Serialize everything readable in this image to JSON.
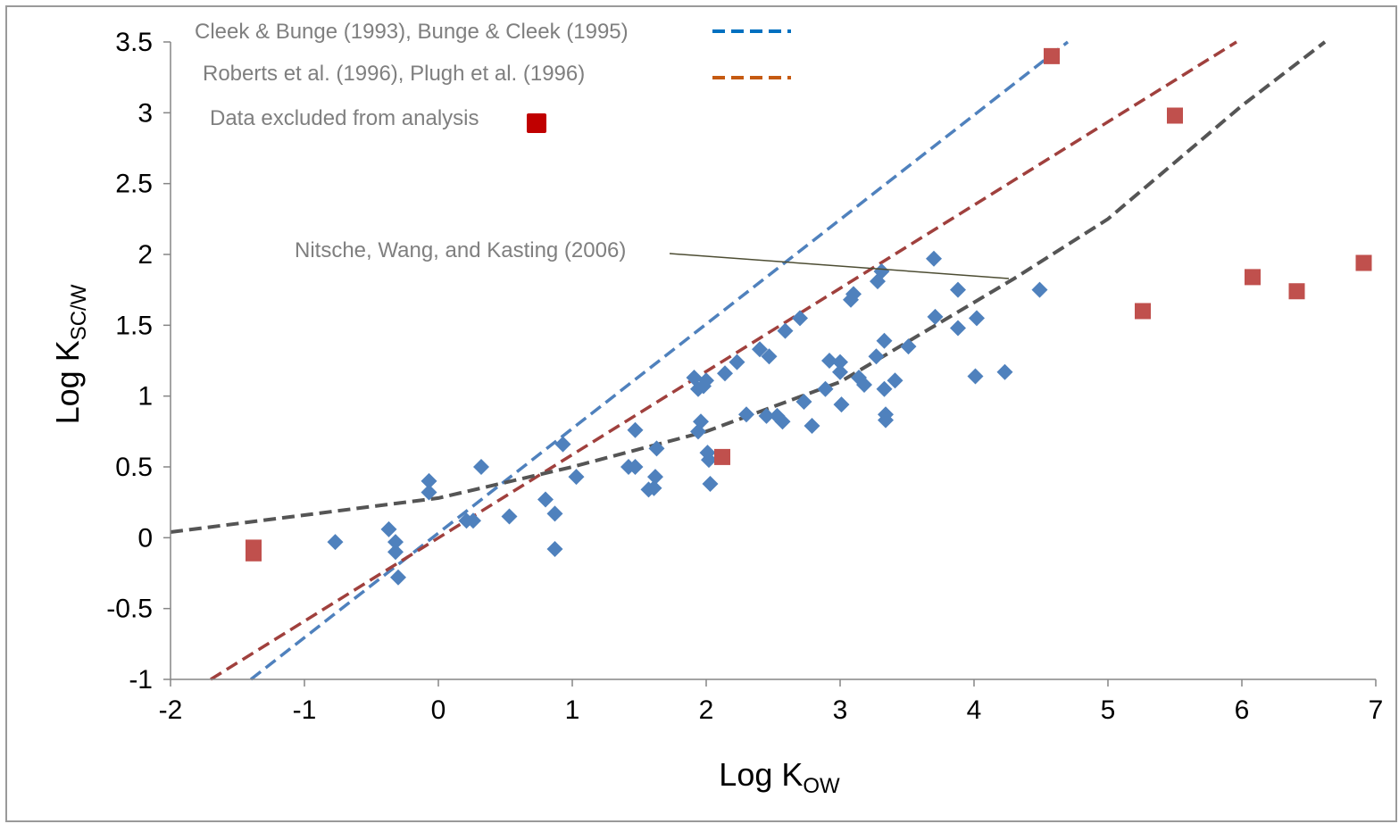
{
  "chart_data": {
    "type": "scatter",
    "xlabel": {
      "main": "Log K",
      "sub": "OW"
    },
    "ylabel": {
      "main": "Log K",
      "sub": "SC/W"
    },
    "xlim": [
      -2,
      7
    ],
    "ylim": [
      -1,
      3.5
    ],
    "xticks": [
      "-2",
      "-1",
      "0",
      "1",
      "2",
      "3",
      "4",
      "5",
      "6",
      "7"
    ],
    "yticks": [
      "-1",
      "-0.5",
      "0",
      "0.5",
      "1",
      "1.5",
      "2",
      "2.5",
      "3",
      "3.5"
    ],
    "xtick_values": [
      -2,
      -1,
      0,
      1,
      2,
      3,
      4,
      5,
      6,
      7
    ],
    "ytick_values": [
      -1,
      -0.5,
      0,
      0.5,
      1,
      1.5,
      2,
      2.5,
      3,
      3.5
    ],
    "grid": false,
    "legend": {
      "placement": "top-left",
      "entries": [
        {
          "label": "Cleek & Bunge (1993), Bunge & Cleek (1995)",
          "marker": "dashed-line",
          "color": "#0070c0"
        },
        {
          "label": "Roberts et al. (1996), Plugh et al. (1996)",
          "marker": "dashed-line",
          "color": "#c55a11"
        },
        {
          "label": "Data excluded from analysis",
          "marker": "square",
          "color": "#c00000"
        }
      ]
    },
    "annotations": [
      {
        "text": "Nitsche, Wang, and Kasting (2006)",
        "points_to": {
          "x": 4.3,
          "y": 1.83
        }
      }
    ],
    "series": [
      {
        "marker": "diamond",
        "color": "#4f81bd",
        "points": [
          [
            -0.77,
            -0.03
          ],
          [
            -0.37,
            0.06
          ],
          [
            -0.32,
            -0.03
          ],
          [
            -0.32,
            -0.1
          ],
          [
            -0.3,
            -0.28
          ],
          [
            -0.07,
            0.4
          ],
          [
            -0.07,
            0.32
          ],
          [
            0.21,
            0.12
          ],
          [
            0.26,
            0.12
          ],
          [
            0.32,
            0.5
          ],
          [
            0.53,
            0.15
          ],
          [
            0.8,
            0.27
          ],
          [
            0.87,
            0.17
          ],
          [
            0.87,
            -0.08
          ],
          [
            0.93,
            0.66
          ],
          [
            1.03,
            0.43
          ],
          [
            1.42,
            0.5
          ],
          [
            1.47,
            0.5
          ],
          [
            1.47,
            0.76
          ],
          [
            1.57,
            0.34
          ],
          [
            1.61,
            0.35
          ],
          [
            1.62,
            0.43
          ],
          [
            1.63,
            0.63
          ],
          [
            1.91,
            1.13
          ],
          [
            1.94,
            1.05
          ],
          [
            1.94,
            0.75
          ],
          [
            1.96,
            0.82
          ],
          [
            1.98,
            1.07
          ],
          [
            2.0,
            1.11
          ],
          [
            2.01,
            0.6
          ],
          [
            2.02,
            0.55
          ],
          [
            2.03,
            0.38
          ],
          [
            2.14,
            1.16
          ],
          [
            2.23,
            1.24
          ],
          [
            2.3,
            0.87
          ],
          [
            2.4,
            1.33
          ],
          [
            2.45,
            0.86
          ],
          [
            2.47,
            1.28
          ],
          [
            2.53,
            0.86
          ],
          [
            2.57,
            0.82
          ],
          [
            2.59,
            1.46
          ],
          [
            2.7,
            1.55
          ],
          [
            2.73,
            0.96
          ],
          [
            2.79,
            0.79
          ],
          [
            2.89,
            1.05
          ],
          [
            2.92,
            1.25
          ],
          [
            3.0,
            1.24
          ],
          [
            3.0,
            1.17
          ],
          [
            3.01,
            0.94
          ],
          [
            3.08,
            1.68
          ],
          [
            3.1,
            1.72
          ],
          [
            3.14,
            1.13
          ],
          [
            3.18,
            1.08
          ],
          [
            3.27,
            1.28
          ],
          [
            3.28,
            1.81
          ],
          [
            3.31,
            1.88
          ],
          [
            3.33,
            1.39
          ],
          [
            3.33,
            1.05
          ],
          [
            3.34,
            0.87
          ],
          [
            3.34,
            0.83
          ],
          [
            3.41,
            1.11
          ],
          [
            3.51,
            1.35
          ],
          [
            3.7,
            1.97
          ],
          [
            3.71,
            1.56
          ],
          [
            3.88,
            1.75
          ],
          [
            3.88,
            1.48
          ],
          [
            4.01,
            1.14
          ],
          [
            4.02,
            1.55
          ],
          [
            4.23,
            1.17
          ],
          [
            4.49,
            1.75
          ]
        ]
      },
      {
        "name": "Data excluded from analysis",
        "marker": "square",
        "color": "#c0504d",
        "points": [
          [
            -1.38,
            -0.07
          ],
          [
            -1.38,
            -0.11
          ],
          [
            2.12,
            0.57
          ],
          [
            4.58,
            3.4
          ],
          [
            5.26,
            1.6
          ],
          [
            5.5,
            2.98
          ],
          [
            6.08,
            1.84
          ],
          [
            6.41,
            1.74
          ],
          [
            6.91,
            1.94
          ]
        ]
      }
    ],
    "lines": [
      {
        "color": "#4f81bd",
        "style": "dashed",
        "points": [
          [
            -1.4,
            -1.0
          ],
          [
            4.7,
            3.5
          ]
        ]
      },
      {
        "color": "#a0403d",
        "style": "dashed",
        "points": [
          [
            -1.7,
            -1.0
          ],
          [
            5.96,
            3.5
          ]
        ]
      },
      {
        "color": "#555555",
        "style": "dashed",
        "points": [
          [
            -2.0,
            0.04
          ],
          [
            0.0,
            0.28
          ],
          [
            1.0,
            0.5
          ],
          [
            2.0,
            0.75
          ],
          [
            3.0,
            1.1
          ],
          [
            4.3,
            1.83
          ],
          [
            5.0,
            2.25
          ],
          [
            6.0,
            3.05
          ],
          [
            6.62,
            3.5
          ]
        ]
      }
    ]
  }
}
